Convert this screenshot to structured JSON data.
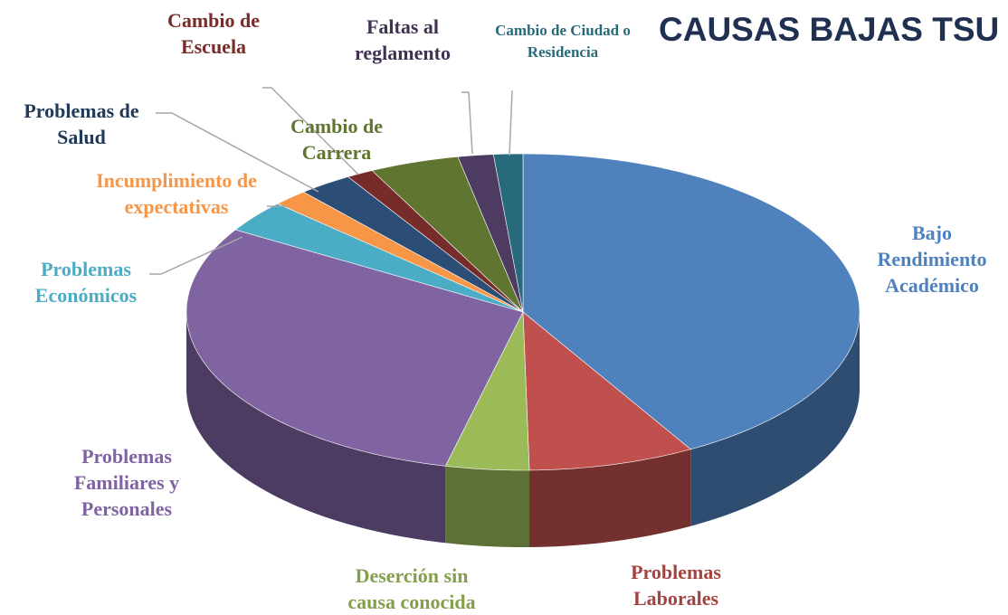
{
  "chart_data": {
    "type": "pie",
    "title": "CAUSAS BAJAS TSU",
    "categories": [
      "Bajo Rendimiento Académico",
      "Problemas Laborales",
      "Deserción sin causa conocida",
      "Problemas Familiares y Personales",
      "Problemas Económicos",
      "Incumplimiento de expectativas",
      "Problemas de Salud",
      "Cambio de Escuela",
      "Cambio de Carrera",
      "Faltas al reglamento",
      "Cambio de Ciudad o Residencia"
    ],
    "values": [
      41.7,
      8,
      4,
      30,
      3.3,
      1.7,
      2.6,
      1.3,
      4.3,
      1.7,
      1.4
    ],
    "colors": [
      "#4f81bd",
      "#c0504d",
      "#9bbb59",
      "#8064a2",
      "#4bacc6",
      "#f79646",
      "#2c4d75",
      "#772c2a",
      "#5f7530",
      "#4d3b62",
      "#276a7c"
    ],
    "legend": false
  }
}
